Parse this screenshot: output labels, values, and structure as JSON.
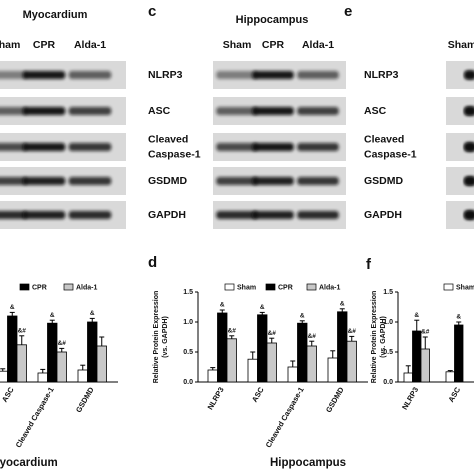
{
  "blots": [
    {
      "title": "Myocardium",
      "lanes": [
        "Sham",
        "CPR",
        "Alda-1"
      ]
    },
    {
      "panel": "c",
      "title": "Hippocampus",
      "lanes": [
        "Sham",
        "CPR",
        "Alda-1"
      ],
      "rows": [
        [
          "NLRP3"
        ],
        [
          "ASC"
        ],
        [
          "Cleaved",
          "Caspase-1"
        ],
        [
          "GSDMD"
        ],
        [
          "GAPDH"
        ]
      ]
    },
    {
      "panel": "e",
      "lanes": [
        "Sham"
      ],
      "rows": [
        [
          "NLRP3"
        ],
        [
          "ASC"
        ],
        [
          "Cleaved",
          "Caspase-1"
        ],
        [
          "GSDMD"
        ],
        [
          "GAPDH"
        ]
      ]
    }
  ],
  "chart_data": [
    {
      "type": "bar",
      "title": "Myocardium",
      "categories": [
        "ASC",
        "Cleaved Caspase-1",
        "GSDMD"
      ],
      "ylim": [
        0,
        1.5
      ],
      "series": [
        {
          "color": "#ffffff",
          "values": [
            0.18,
            0.15,
            0.2
          ],
          "errors": [
            0.04,
            0.06,
            0.08
          ]
        },
        {
          "name": "CPR",
          "color": "#000000",
          "values": [
            1.1,
            0.98,
            1.0
          ],
          "errors": [
            0.06,
            0.05,
            0.06
          ],
          "annotations": [
            "&",
            "&",
            "&"
          ]
        },
        {
          "name": "Alda-1",
          "color": "#c8c8c8",
          "values": [
            0.62,
            0.5,
            0.6
          ],
          "errors": [
            0.15,
            0.06,
            0.15
          ],
          "annotations": [
            "&#",
            "&#",
            null
          ]
        }
      ]
    },
    {
      "type": "bar",
      "panel": "d",
      "title": "Hippocampus",
      "ylabel": [
        "Relative Protein Expression",
        "(vs. GAPDH)"
      ],
      "categories": [
        "NLRP3",
        "ASC",
        "Cleaved Caspase-1",
        "GSDMD"
      ],
      "ylim": [
        0,
        1.5
      ],
      "yticks": [
        {
          "value": 0,
          "label": "0.0"
        },
        {
          "value": 0.5,
          "label": "0.5"
        },
        {
          "value": 1,
          "label": "1.0"
        },
        {
          "value": 1.5,
          "label": "1.5"
        }
      ],
      "series": [
        {
          "name": "Sham",
          "color": "#ffffff",
          "values": [
            0.2,
            0.38,
            0.25,
            0.4
          ],
          "errors": [
            0.04,
            0.12,
            0.1,
            0.12
          ]
        },
        {
          "name": "CPR",
          "color": "#000000",
          "values": [
            1.15,
            1.12,
            0.98,
            1.17
          ],
          "errors": [
            0.05,
            0.04,
            0.04,
            0.05
          ],
          "annotations": [
            "&",
            "&",
            "&",
            "&"
          ]
        },
        {
          "name": "Alda-1",
          "color": "#c8c8c8",
          "values": [
            0.72,
            0.65,
            0.6,
            0.68
          ],
          "errors": [
            0.05,
            0.08,
            0.08,
            0.08
          ],
          "annotations": [
            "&#",
            "&#",
            "&#",
            "&#"
          ]
        }
      ]
    },
    {
      "type": "bar",
      "panel": "f",
      "ylabel": [
        "Relative Protein Expression",
        "(vs. GAPDH)"
      ],
      "categories": [
        "NLRP3",
        "ASC"
      ],
      "ylim": [
        0,
        1.5
      ],
      "yticks": [
        {
          "value": 0,
          "label": "0.0"
        },
        {
          "value": 0.5,
          "label": "0.5"
        },
        {
          "value": 1,
          "label": "1.0"
        },
        {
          "value": 1.5,
          "label": "1.5"
        }
      ],
      "series": [
        {
          "name": "Sham",
          "color": "#ffffff",
          "values": [
            0.15,
            0.17
          ],
          "errors": [
            0.12,
            0.02
          ]
        },
        {
          "color": "#000000",
          "values": [
            0.85,
            0.95
          ],
          "errors": [
            0.18,
            0.05
          ],
          "annotations": [
            "&",
            "&"
          ]
        },
        {
          "color": "#c8c8c8",
          "values": [
            0.55,
            null
          ],
          "errors": [
            0.2,
            null
          ],
          "annotations": [
            "&#",
            null
          ]
        }
      ]
    }
  ]
}
